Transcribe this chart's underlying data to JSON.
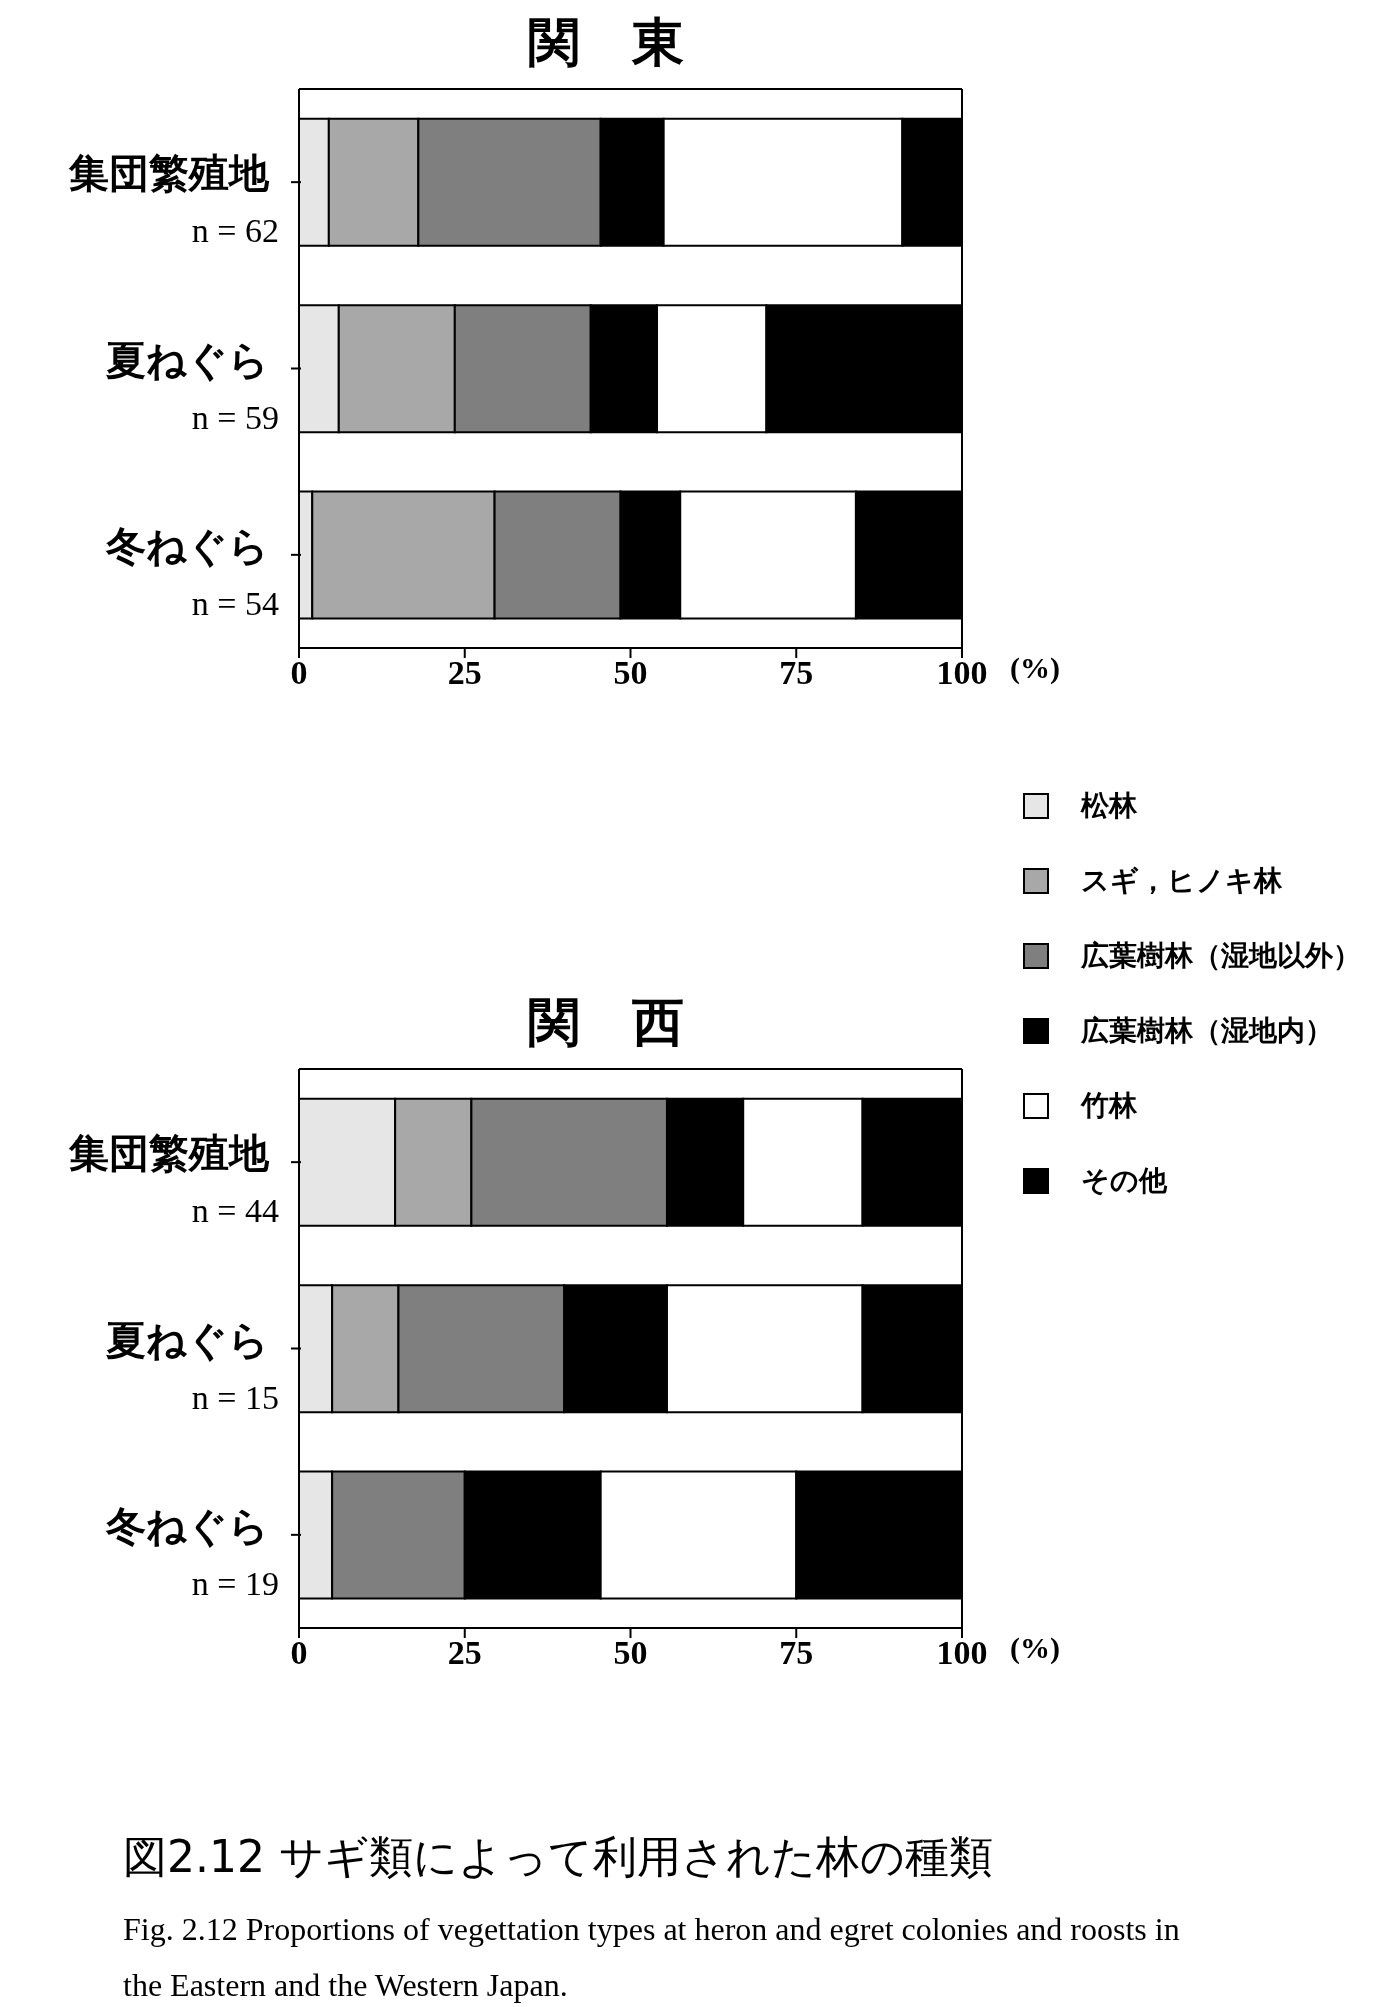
{
  "chart_data": [
    {
      "type": "bar",
      "orientation": "horizontal",
      "stacked": true,
      "title": "関　東",
      "xlabel": "(%)",
      "categories": [
        "集団繁殖地\nn = 62",
        "夏ねぐら\nn = 59",
        "冬ねぐら\nn = 54"
      ],
      "xlim": [
        0,
        100
      ],
      "xticks": [
        0,
        25,
        50,
        75,
        100
      ],
      "legend": "right",
      "series": [
        {
          "name": "松林",
          "color": "#e6e6e6",
          "values": [
            4.5,
            6,
            2
          ]
        },
        {
          "name": "スギ，ヒノキ林",
          "color": "#a8a8a8",
          "values": [
            13.5,
            17.5,
            27.5
          ]
        },
        {
          "name": "広葉樹林（湿地以外）",
          "color": "#7f7f7f",
          "values": [
            27.5,
            20.5,
            19
          ]
        },
        {
          "name": "広葉樹林（湿地内）",
          "color": "#000000",
          "values": [
            9.5,
            10,
            9
          ]
        },
        {
          "name": "竹林",
          "color": "#ffffff",
          "values": [
            36,
            16.5,
            26.5
          ]
        },
        {
          "name": "その他",
          "color": "#000000",
          "values": [
            9,
            29.5,
            16
          ]
        }
      ]
    },
    {
      "type": "bar",
      "orientation": "horizontal",
      "stacked": true,
      "title": "関　西",
      "xlabel": "(%)",
      "categories": [
        "集団繁殖地\nn = 44",
        "夏ねぐら\nn = 15",
        "冬ねぐら\nn = 19"
      ],
      "xlim": [
        0,
        100
      ],
      "xticks": [
        0,
        25,
        50,
        75,
        100
      ],
      "annotations": [
        "図2.12 サギ類によって利用された林の種類",
        "Fig. 2.12  Proportions of vegettation types at heron and egret colonies and roosts in the Eastern and the Western Japan."
      ],
      "series": [
        {
          "color": "#e6e6e6",
          "values": [
            14.5,
            5,
            5
          ]
        },
        {
          "color": "#a8a8a8",
          "values": [
            11.5,
            10,
            0
          ]
        },
        {
          "color": "#7f7f7f",
          "values": [
            29.5,
            25,
            20
          ]
        },
        {
          "color": "#000000",
          "values": [
            11.5,
            15.5,
            20.5
          ]
        },
        {
          "color": "#ffffff",
          "values": [
            18,
            29.5,
            29.5
          ]
        },
        {
          "color": "#000000",
          "values": [
            15,
            15,
            25
          ]
        }
      ]
    }
  ]
}
